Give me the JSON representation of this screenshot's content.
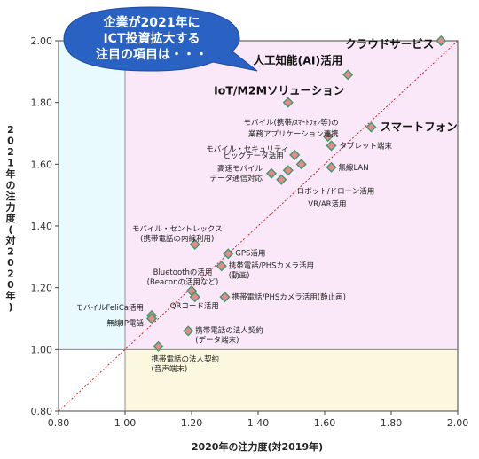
{
  "chart_data": {
    "type": "scatter",
    "xlabel": "2020年の注力度(対2019年)",
    "ylabel": "2021年の注力度(対2020年)",
    "xlim": [
      0.8,
      2.0
    ],
    "ylim": [
      0.8,
      2.0
    ],
    "xticks": [
      "0.80",
      "1.00",
      "1.20",
      "1.40",
      "1.60",
      "1.80",
      "2.00"
    ],
    "yticks": [
      "0.80",
      "1.00",
      "1.20",
      "1.40",
      "1.60",
      "1.80",
      "2.00"
    ],
    "grid": false,
    "diagonal_reference_line": true,
    "region_colors": {
      "upper_left": "#e8fafd",
      "upper_right": "#fae8f8",
      "lower_right": "#fbf8df"
    },
    "point_fill": "#e98a8a",
    "point_border": "#3c9a6e",
    "callout": {
      "lines": [
        "企業が2021年に",
        "ICT投資拡大する",
        "注目の項目は・・・"
      ],
      "fill": "#2a62c4"
    },
    "points": [
      {
        "label": "クラウドサービス",
        "x": 1.95,
        "y": 2.0,
        "emphasis": true
      },
      {
        "label": "人工知能(AI)活用",
        "x": 1.67,
        "y": 1.89,
        "emphasis": true
      },
      {
        "label": "IoT/M2Mソリューション",
        "x": 1.49,
        "y": 1.8,
        "emphasis": true
      },
      {
        "label": "スマートフォン",
        "x": 1.74,
        "y": 1.72,
        "emphasis": true
      },
      {
        "label": "モバイル(携帯/ｽﾏｰﾄﾌｫﾝ等)の\n業務アプリケーション連携",
        "x": 1.61,
        "y": 1.69
      },
      {
        "label": "タブレット端末",
        "x": 1.62,
        "y": 1.66
      },
      {
        "label": "モバイル・セキュリティ",
        "x": 1.51,
        "y": 1.63
      },
      {
        "label": "ビッグデータ活用",
        "x": 1.53,
        "y": 1.6
      },
      {
        "label": "無線LAN",
        "x": 1.62,
        "y": 1.59
      },
      {
        "label": "高速モバイル\nデータ通信対応",
        "x": 1.44,
        "y": 1.57
      },
      {
        "label": "ロボット/ドローン活用",
        "x": 1.49,
        "y": 1.58
      },
      {
        "label": "VR/AR活用",
        "x": 1.47,
        "y": 1.55
      },
      {
        "label": "モバイル・セントレックス\n(携帯電話の内線利用)",
        "x": 1.21,
        "y": 1.34
      },
      {
        "label": "GPS活用",
        "x": 1.31,
        "y": 1.31
      },
      {
        "label": "携帯電話/PHSカメラ活用\n(動画)",
        "x": 1.29,
        "y": 1.27
      },
      {
        "label": "Bluetoothの活用\n(Beaconの活用など)",
        "x": 1.2,
        "y": 1.19
      },
      {
        "label": "QRコード活用",
        "x": 1.21,
        "y": 1.17
      },
      {
        "label": "携帯電話/PHSカメラ活用(静止画)",
        "x": 1.3,
        "y": 1.17
      },
      {
        "label": "モバイルFeliCa活用",
        "x": 1.08,
        "y": 1.11
      },
      {
        "label": "無線IP電話",
        "x": 1.08,
        "y": 1.1
      },
      {
        "label": "携帯電話の法人契約\n(データ端末)",
        "x": 1.19,
        "y": 1.06
      },
      {
        "label": "携帯電話の法人契約\n(音声端末)",
        "x": 1.1,
        "y": 1.01
      }
    ]
  }
}
